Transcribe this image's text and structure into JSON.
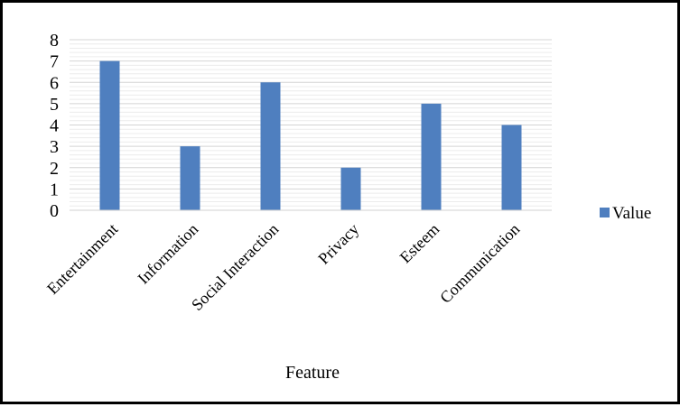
{
  "chart_data": {
    "type": "bar",
    "categories": [
      "Entertainment",
      "Information",
      "Social Interaction",
      "Privacy",
      "Esteem",
      "Communication"
    ],
    "series": [
      {
        "name": "Value",
        "values": [
          7,
          3,
          6,
          2,
          5,
          4
        ],
        "color": "#4f7fbf"
      }
    ],
    "xlabel": "Feature",
    "ylabel": "",
    "ylim": [
      0,
      8
    ],
    "yticks": [
      0,
      1,
      2,
      3,
      4,
      5,
      6,
      7,
      8
    ],
    "grid": true,
    "legend_position": "right"
  }
}
